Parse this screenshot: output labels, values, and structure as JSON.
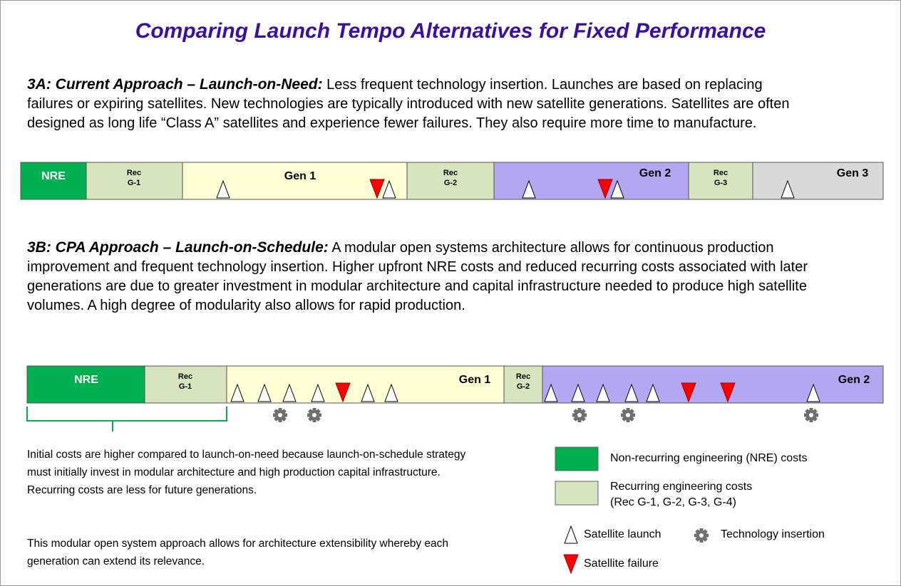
{
  "title": "Comparing Launch Tempo Alternatives for Fixed Performance",
  "sections": [
    {
      "heading": "3A: Current Approach – Launch-on-Need:",
      "body": "Less frequent technology insertion. Launches are based on replacing failures or expiring satellites. New technologies are typically introduced with new satellite generations. Satellites are often designed as long life “Class A” satellites and experience fewer failures. They also require more time to manufacture.",
      "timeline": [
        {
          "label": "NRE"
        },
        {
          "label": [
            "Rec",
            "G-1"
          ]
        },
        {
          "label": "Gen 1"
        },
        {
          "label": [
            "Rec",
            "G-2"
          ]
        },
        {
          "label": "Gen 2"
        },
        {
          "label": [
            "Rec",
            "G-3"
          ]
        },
        {
          "label": "Gen 3"
        }
      ]
    },
    {
      "heading": "3B: CPA Approach – Launch-on-Schedule:",
      "body": "A modular open systems architecture allows for continuous production improvement and frequent technology insertion. Higher upfront NRE costs and reduced recurring costs associated with later generations are due to greater investment in modular architecture and capital infrastructure needed to produce high satellite volumes. A high degree of modularity also allows for rapid production.",
      "timeline": [
        {
          "label": "NRE"
        },
        {
          "label": [
            "Rec",
            "G-1"
          ]
        },
        {
          "label": "Gen 1"
        },
        {
          "label": [
            "Rec",
            "G-2"
          ]
        },
        {
          "label": "Gen 2"
        }
      ]
    }
  ],
  "notes": [
    "Initial costs are higher compared to launch-on-need because launch-on-schedule strategy must initially invest in modular architecture and high production capital infrastructure.  Recurring costs are less for future generations.",
    "This modular open system approach allows for architecture extensibility whereby each generation can extend its relevance."
  ],
  "legend": {
    "nre": "Non-recurring engineering (NRE) costs",
    "recurring": [
      "Recurring engineering costs",
      "(Rec G-1, G-2, G-3, G-4)"
    ],
    "launch": "Satellite launch",
    "insertion": "Technology insertion",
    "failure": "Satellite failure"
  }
}
